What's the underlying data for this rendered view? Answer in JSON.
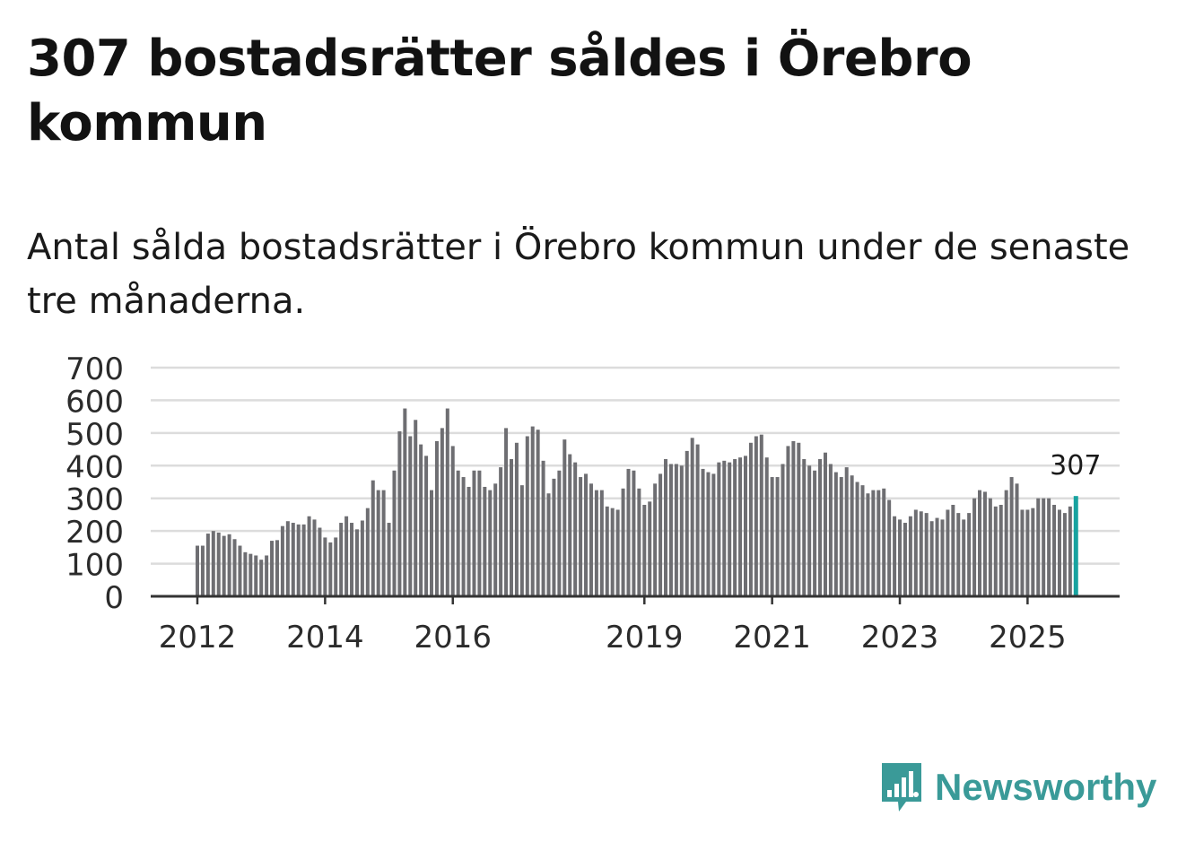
{
  "title": "307 bostadsrätter såldes i Örebro kommun",
  "subtitle": "Antal sålda bostadsrätter i Örebro kommun under de senaste tre månaderna.",
  "brand": {
    "name": "Newsworthy",
    "color": "#3a9a98",
    "icon": "newsworthy-logo-icon"
  },
  "colors": {
    "bar": "#6e6e72",
    "highlight": "#18a3a0",
    "grid": "#dcdcdc",
    "axis": "#333333"
  },
  "chart_data": {
    "type": "bar",
    "ylim": [
      0,
      700
    ],
    "yticks": [
      0,
      100,
      200,
      300,
      400,
      500,
      600,
      700
    ],
    "xticks": [
      "2012",
      "2014",
      "2016",
      "2019",
      "2021",
      "2023",
      "2025"
    ],
    "grid": true,
    "last_value_label": "307",
    "start": "2012-01",
    "series": [
      {
        "values": [
          155,
          155,
          192,
          200,
          195,
          185,
          190,
          175,
          155,
          135,
          130,
          125,
          112,
          125,
          170,
          172,
          215,
          230,
          225,
          220,
          220,
          245,
          235,
          210,
          180,
          165,
          180,
          225,
          245,
          225,
          205,
          232,
          270,
          355,
          325,
          325,
          225,
          385,
          505,
          575,
          490,
          540,
          465,
          430,
          325,
          475,
          515,
          575,
          460,
          385,
          365,
          335,
          385,
          385,
          335,
          325,
          345,
          395,
          515,
          420,
          470,
          340,
          490,
          520,
          510,
          415,
          315,
          360,
          385,
          480,
          435,
          410,
          365,
          375,
          345,
          325,
          325,
          275,
          270,
          265,
          330,
          390,
          385,
          330,
          280,
          290,
          345,
          375,
          420,
          405,
          405,
          400,
          445,
          485,
          465,
          390,
          380,
          375,
          410,
          415,
          410,
          420,
          425,
          430,
          470,
          490,
          495,
          425,
          365,
          365,
          405,
          460,
          475,
          470,
          420,
          400,
          385,
          420,
          440,
          405,
          380,
          365,
          395,
          370,
          350,
          340,
          315,
          325,
          325,
          330,
          295,
          245,
          235,
          225,
          245,
          265,
          260,
          255,
          230,
          240,
          235,
          265,
          280,
          255,
          235,
          255,
          300,
          325,
          320,
          300,
          275,
          280,
          325,
          365,
          345,
          265,
          265,
          270,
          300,
          300,
          300,
          280,
          265,
          255,
          275,
          307
        ]
      }
    ]
  }
}
